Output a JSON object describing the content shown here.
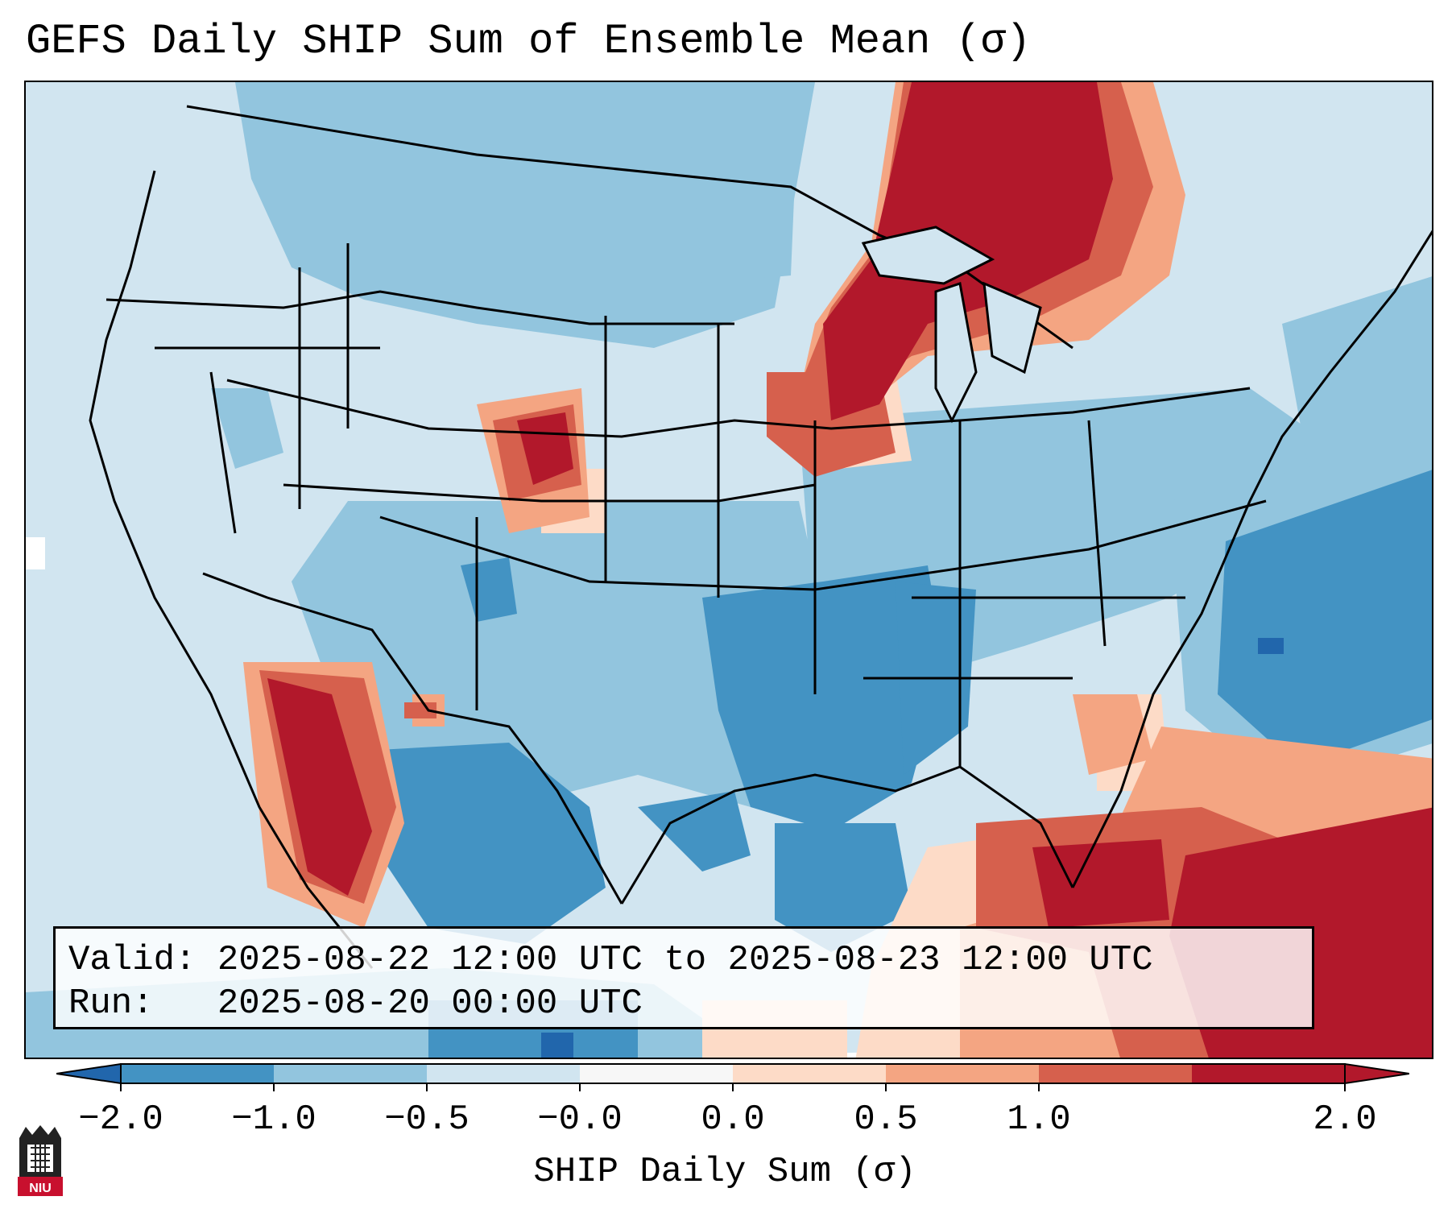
{
  "title": "GEFS Daily SHIP Sum of Ensemble Mean (σ)",
  "info": {
    "valid_label": "Valid:",
    "valid_value": "2025-08-22 12:00 UTC to 2025-08-23 12:00 UTC",
    "run_label": "Run:",
    "run_value": "2025-08-20 00:00 UTC"
  },
  "colorbar": {
    "label": "SHIP Daily Sum (σ)",
    "ticks": [
      "−2.0",
      "−1.0",
      "−0.5",
      "−0.0",
      "0.0",
      "0.5",
      "1.0",
      "2.0"
    ],
    "colors": [
      "#4393c3",
      "#92c5de",
      "#d1e5f0",
      "#f7f7f7",
      "#fddbc7",
      "#f4a582",
      "#d6604d",
      "#b2182b"
    ],
    "under_color": "#2166ac",
    "over_color": "#b2182b"
  },
  "map": {
    "background_color": "#d1e5f0",
    "projection": "Lambert Conformal",
    "region": "Continental United States"
  },
  "logo": {
    "text": "NIU",
    "name": "NIU logo"
  }
}
